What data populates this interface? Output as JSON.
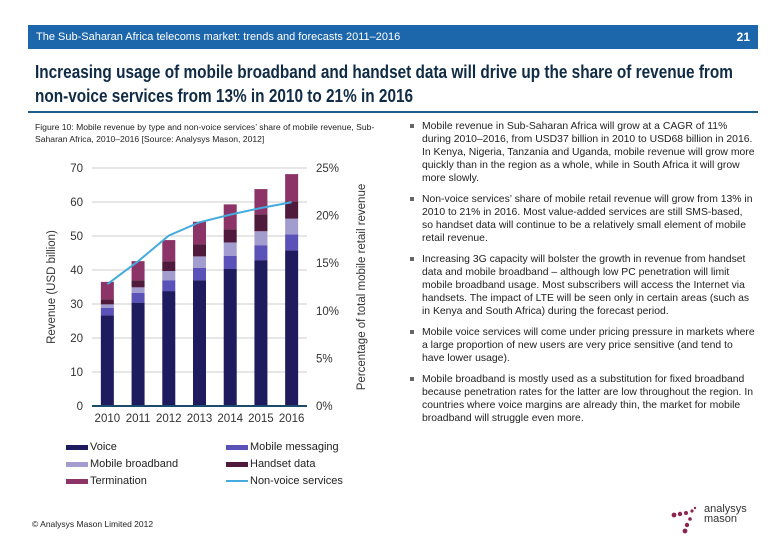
{
  "header": {
    "title": "The Sub-Saharan Africa telecoms market: trends and forecasts 2011–2016",
    "page_number": "21"
  },
  "headline": "Increasing usage of mobile broadband and handset data will drive up the share of revenue from non-voice services from 13% in 2010 to 21% in 2016",
  "figure_caption": "Figure 10: Mobile revenue by type and non-voice services’ share of mobile revenue, Sub-Saharan Africa, 2010–2016 [Source: Analysys Mason, 2012]",
  "chart_data": {
    "type": "bar",
    "stacked": true,
    "categories": [
      "2010",
      "2011",
      "2012",
      "2013",
      "2014",
      "2015",
      "2016"
    ],
    "ylabel": "Revenue (USD billion)",
    "ylim": [
      0,
      70
    ],
    "yticks": [
      "0",
      "10",
      "20",
      "30",
      "40",
      "50",
      "60",
      "70"
    ],
    "y2label": "Percentage of total mobile retail revenue",
    "y2lim": [
      0,
      25
    ],
    "y2ticks": [
      "0%",
      "5%",
      "10%",
      "15%",
      "20%",
      "25%"
    ],
    "grid": true,
    "legend_position": "bottom",
    "series": [
      {
        "name": "Voice",
        "color": "#1f1b5f",
        "values": [
          26.7,
          30.4,
          33.8,
          37.0,
          40.3,
          42.9,
          45.8
        ]
      },
      {
        "name": "Mobile messaging",
        "color": "#5a52b8",
        "values": [
          2.2,
          2.9,
          3.2,
          3.6,
          3.9,
          4.4,
          4.7
        ]
      },
      {
        "name": "Mobile broadband",
        "color": "#a29ccf",
        "values": [
          1.0,
          1.6,
          2.7,
          3.4,
          3.9,
          4.1,
          4.6
        ]
      },
      {
        "name": "Handset data",
        "color": "#4f1a3b",
        "values": [
          1.5,
          2.1,
          2.9,
          3.6,
          3.9,
          5.0,
          5.1
        ]
      },
      {
        "name": "Termination",
        "color": "#8c3467",
        "values": [
          5.1,
          5.6,
          6.2,
          6.6,
          7.3,
          7.4,
          8.0
        ]
      }
    ],
    "line_series": {
      "name": "Non-voice services",
      "color": "#45aade",
      "axis": "right",
      "values": [
        12.8,
        15.2,
        17.9,
        19.3,
        20.1,
        20.8,
        21.4
      ]
    }
  },
  "bullets": [
    "Mobile revenue in Sub-Saharan Africa will grow at a CAGR of 11% during 2010–2016, from USD37 billion in 2010 to USD68 billion in 2016. In Kenya, Nigeria, Tanzania and Uganda, mobile revenue will grow more quickly than in the region as a whole, while in South Africa it will grow more slowly.",
    "Non-voice services’ share of mobile retail revenue will grow from 13% in 2010 to 21% in 2016. Most value-added services are still SMS-based, so handset data will continue to be a relatively small element of mobile retail revenue.",
    "Increasing 3G capacity will bolster the growth in revenue from handset data and mobile broadband – although low PC penetration will limit mobile broadband usage. Most subscribers will access the Internet via handsets. The impact of LTE will be seen only in certain areas (such as in Kenya and South Africa) during the forecast period.",
    "Mobile voice services will come under pricing pressure in markets where a large proportion of new users are very price sensitive (and tend to have lower usage).",
    "Mobile broadband is mostly used as a substitution for fixed broadband because penetration rates for the latter are low throughout the region. In countries where voice margins are already thin, the market for mobile broadband will struggle even more."
  ],
  "footer": "© Analysys Mason Limited 2012",
  "logo": {
    "line1": "analysys",
    "line2": "mason",
    "color": "#8c2452"
  }
}
